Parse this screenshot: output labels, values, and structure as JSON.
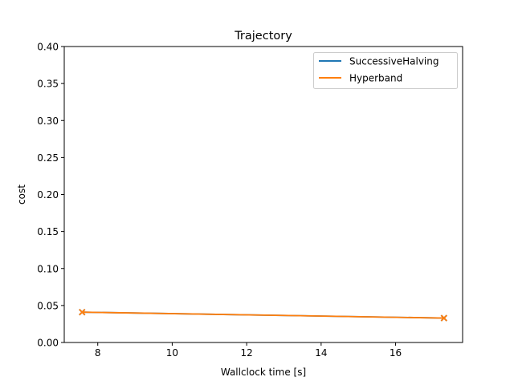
{
  "chart_data": {
    "type": "line",
    "title": "Trajectory",
    "xlabel": "Wallclock time [s]",
    "ylabel": "cost",
    "xlim": [
      7.1,
      17.8
    ],
    "ylim": [
      0.0,
      0.4
    ],
    "xticks": [
      8,
      10,
      12,
      14,
      16
    ],
    "xtick_labels": [
      "8",
      "10",
      "12",
      "14",
      "16"
    ],
    "yticks": [
      0.0,
      0.05,
      0.1,
      0.15,
      0.2,
      0.25,
      0.3,
      0.35,
      0.4
    ],
    "ytick_labels": [
      "0.00",
      "0.05",
      "0.10",
      "0.15",
      "0.20",
      "0.25",
      "0.30",
      "0.35",
      "0.40"
    ],
    "grid": false,
    "legend_position": "top-right",
    "series": [
      {
        "name": "SuccessiveHalving",
        "color": "#1f77b4",
        "x": [
          7.58,
          17.3
        ],
        "y": [
          0.041,
          0.033
        ],
        "marker": "x"
      },
      {
        "name": "Hyperband",
        "color": "#ff7f0e",
        "x": [
          7.58,
          17.3
        ],
        "y": [
          0.041,
          0.033
        ],
        "marker": "x"
      }
    ]
  }
}
